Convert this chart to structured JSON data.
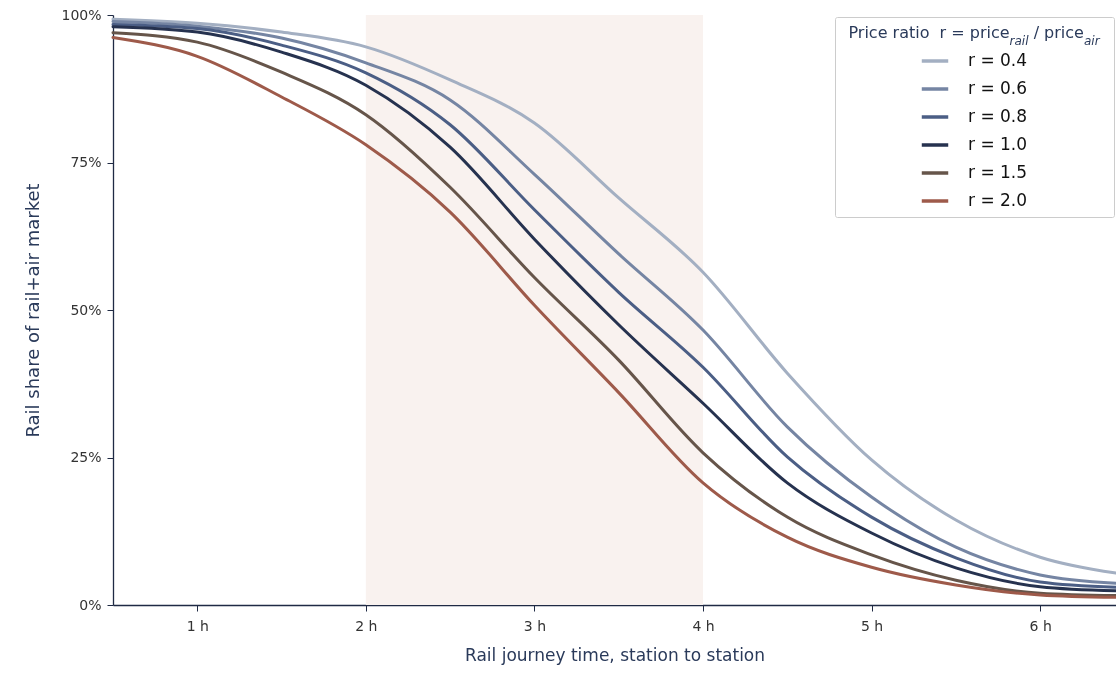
{
  "chart_data": {
    "type": "line",
    "xlabel": "Rail journey time, station to station",
    "ylabel": "Rail share of rail+air market",
    "legend_title": "Price ratio  r = price$_{rail}$ / price$_{air}$",
    "legend": "top right",
    "x": [
      0.5,
      1,
      1.5,
      2,
      2.5,
      3,
      3.5,
      4,
      4.5,
      5,
      5.5,
      6,
      6.45
    ],
    "xlim": [
      0.5,
      6.45
    ],
    "xticks": [
      {
        "value": 1,
        "label": "1 h"
      },
      {
        "value": 2,
        "label": "2 h"
      },
      {
        "value": 3,
        "label": "3 h"
      },
      {
        "value": 4,
        "label": "4 h"
      },
      {
        "value": 5,
        "label": "5 h"
      },
      {
        "value": 6,
        "label": "6 h"
      }
    ],
    "ylim": [
      0,
      100
    ],
    "yticks": [
      {
        "value": 0,
        "label": "0%"
      },
      {
        "value": 25,
        "label": "25%"
      },
      {
        "value": 50,
        "label": "50%"
      },
      {
        "value": 75,
        "label": "75%"
      },
      {
        "value": 100,
        "label": "100%"
      }
    ],
    "bands": [
      {
        "axis": "x",
        "from": 2,
        "to": 4,
        "color": "#f9f2ef"
      }
    ],
    "series": [
      {
        "name": "r = 0.4",
        "color": "#a3afc2",
        "values": [
          99.3,
          98.6,
          97.1,
          94.6,
          89,
          81.7,
          69,
          56.4,
          39.3,
          24.6,
          14.4,
          8.1,
          5.4
        ]
      },
      {
        "name": "r = 0.6",
        "color": "#7585a3",
        "values": [
          98.9,
          98.1,
          96.1,
          91.9,
          85.6,
          73,
          59.5,
          46.6,
          30.2,
          18.3,
          9.8,
          5.1,
          3.7
        ]
      },
      {
        "name": "r = 0.8",
        "color": "#4b5e85",
        "values": [
          98.4,
          97.7,
          94.9,
          90.2,
          81.4,
          67,
          53,
          40.3,
          25.1,
          14.9,
          8,
          3.9,
          3
        ]
      },
      {
        "name": "r = 1.0",
        "color": "#26324f",
        "values": [
          98,
          97.1,
          93.7,
          88.1,
          77.6,
          62,
          47.5,
          34.2,
          20.7,
          12.2,
          6.3,
          3.1,
          2.4
        ]
      },
      {
        "name": "r = 1.5",
        "color": "#66554a",
        "values": [
          97,
          95.4,
          90.3,
          83.1,
          70.8,
          55.5,
          41.5,
          25.8,
          14.9,
          8.5,
          4.2,
          2,
          1.6
        ]
      },
      {
        "name": "r = 2.0",
        "color": "#9e5a4a",
        "values": [
          96.2,
          93,
          86.1,
          78,
          66.6,
          50.8,
          36,
          20.7,
          11.5,
          6.4,
          3.4,
          1.7,
          1.3
        ]
      }
    ]
  }
}
